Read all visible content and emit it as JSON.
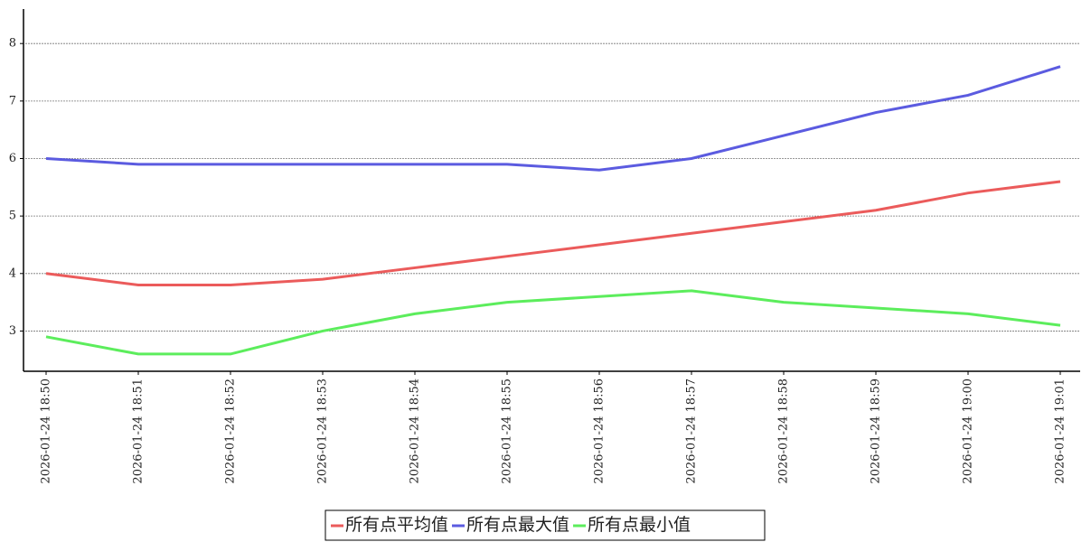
{
  "chart_data": {
    "type": "line",
    "categories": [
      "2026-01-24 18:50",
      "2026-01-24 18:51",
      "2026-01-24 18:52",
      "2026-01-24 18:53",
      "2026-01-24 18:54",
      "2026-01-24 18:55",
      "2026-01-24 18:56",
      "2026-01-24 18:57",
      "2026-01-24 18:58",
      "2026-01-24 18:59",
      "2026-01-24 19:00",
      "2026-01-24 19:01"
    ],
    "series": [
      {
        "name": "所有点平均值",
        "color": "#eb5b5b",
        "values": [
          4.0,
          3.8,
          3.8,
          3.9,
          4.1,
          4.3,
          4.5,
          4.7,
          4.9,
          5.1,
          5.4,
          5.6
        ]
      },
      {
        "name": "所有点最大值",
        "color": "#5b5be0",
        "values": [
          6.0,
          5.9,
          5.9,
          5.9,
          5.9,
          5.9,
          5.8,
          6.0,
          6.4,
          6.8,
          7.1,
          7.6
        ]
      },
      {
        "name": "所有点最小值",
        "color": "#5ced5c",
        "values": [
          2.9,
          2.6,
          2.6,
          3.0,
          3.3,
          3.5,
          3.6,
          3.7,
          3.5,
          3.4,
          3.3,
          3.1
        ]
      }
    ],
    "ylim": [
      2.3,
      8.6
    ],
    "yticks": [
      3,
      4,
      5,
      6,
      7,
      8
    ],
    "grid": true
  }
}
